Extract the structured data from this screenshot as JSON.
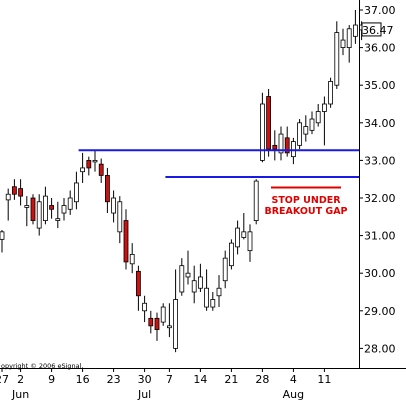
{
  "chart_data": {
    "type": "candlestick",
    "price_axis": {
      "ylim": [
        27.6,
        37.25
      ],
      "ticks": [
        "37.00",
        "36.00",
        "35.00",
        "34.00",
        "33.00",
        "32.00",
        "31.00",
        "30.00",
        "29.00",
        "28.00"
      ],
      "tick_values": [
        37,
        36,
        35,
        34,
        33,
        32,
        31,
        30,
        29,
        28
      ],
      "last_price_label": "36.47",
      "last_price": 36.47
    },
    "date_axis": {
      "day_ticks": [
        "27",
        "2",
        "9",
        "16",
        "23",
        "30",
        "7",
        "14",
        "21",
        "28",
        "4",
        "11"
      ],
      "day_tick_bar_index": [
        0,
        3,
        8,
        13,
        18,
        23,
        27,
        32,
        37,
        42,
        47,
        52
      ],
      "month_labels": [
        "Jun",
        "Jul",
        "Aug"
      ],
      "month_label_bar_index": [
        3,
        23,
        47
      ]
    },
    "candles": [
      {
        "o": 30.9,
        "h": 31.15,
        "l": 30.55,
        "c": 31.1,
        "color": "white"
      },
      {
        "o": 31.95,
        "h": 32.25,
        "l": 31.4,
        "c": 32.1,
        "color": "white"
      },
      {
        "o": 32.3,
        "h": 32.5,
        "l": 31.95,
        "c": 32.1,
        "color": "red"
      },
      {
        "o": 32.25,
        "h": 32.5,
        "l": 31.8,
        "c": 32.05,
        "color": "red"
      },
      {
        "o": 31.8,
        "h": 32.05,
        "l": 31.25,
        "c": 31.75,
        "color": "white"
      },
      {
        "o": 32.0,
        "h": 32.1,
        "l": 31.3,
        "c": 31.4,
        "color": "red"
      },
      {
        "o": 31.9,
        "h": 32.1,
        "l": 31.0,
        "c": 31.2,
        "color": "white"
      },
      {
        "o": 31.4,
        "h": 32.3,
        "l": 31.3,
        "c": 32.05,
        "color": "white"
      },
      {
        "o": 31.8,
        "h": 32.0,
        "l": 31.45,
        "c": 31.7,
        "color": "red"
      },
      {
        "o": 31.4,
        "h": 31.9,
        "l": 31.2,
        "c": 31.45,
        "color": "white"
      },
      {
        "o": 31.6,
        "h": 32.0,
        "l": 31.4,
        "c": 31.8,
        "color": "white"
      },
      {
        "o": 31.7,
        "h": 32.2,
        "l": 31.55,
        "c": 32.0,
        "color": "white"
      },
      {
        "o": 32.4,
        "h": 32.7,
        "l": 31.7,
        "c": 31.9,
        "color": "white"
      },
      {
        "o": 32.8,
        "h": 33.2,
        "l": 32.4,
        "c": 32.7,
        "color": "white"
      },
      {
        "o": 33.0,
        "h": 33.1,
        "l": 32.6,
        "c": 32.8,
        "color": "red"
      },
      {
        "o": 33.0,
        "h": 33.25,
        "l": 32.7,
        "c": 33.0,
        "color": "white"
      },
      {
        "o": 32.9,
        "h": 33.05,
        "l": 32.4,
        "c": 32.6,
        "color": "red"
      },
      {
        "o": 32.6,
        "h": 32.8,
        "l": 31.6,
        "c": 31.9,
        "color": "red"
      },
      {
        "o": 32.0,
        "h": 32.2,
        "l": 31.35,
        "c": 31.6,
        "color": "white"
      },
      {
        "o": 31.9,
        "h": 32.05,
        "l": 30.8,
        "c": 31.1,
        "color": "white"
      },
      {
        "o": 31.4,
        "h": 31.7,
        "l": 30.1,
        "c": 30.3,
        "color": "red"
      },
      {
        "o": 30.5,
        "h": 30.8,
        "l": 30.0,
        "c": 30.25,
        "color": "white"
      },
      {
        "o": 30.05,
        "h": 30.2,
        "l": 29.0,
        "c": 29.4,
        "color": "red"
      },
      {
        "o": 29.2,
        "h": 29.4,
        "l": 28.7,
        "c": 29.0,
        "color": "white"
      },
      {
        "o": 28.8,
        "h": 29.0,
        "l": 28.4,
        "c": 28.6,
        "color": "red"
      },
      {
        "o": 28.5,
        "h": 28.95,
        "l": 28.2,
        "c": 28.8,
        "color": "red"
      },
      {
        "o": 28.7,
        "h": 29.2,
        "l": 28.6,
        "c": 29.1,
        "color": "white"
      },
      {
        "o": 28.6,
        "h": 29.2,
        "l": 28.3,
        "c": 28.55,
        "color": "white"
      },
      {
        "o": 28.0,
        "h": 30.1,
        "l": 27.9,
        "c": 29.3,
        "color": "white"
      },
      {
        "o": 29.5,
        "h": 30.4,
        "l": 29.4,
        "c": 30.2,
        "color": "white"
      },
      {
        "o": 30.0,
        "h": 30.6,
        "l": 29.7,
        "c": 29.9,
        "color": "white"
      },
      {
        "o": 29.5,
        "h": 30.2,
        "l": 29.2,
        "c": 29.8,
        "color": "white"
      },
      {
        "o": 29.9,
        "h": 30.25,
        "l": 29.5,
        "c": 29.6,
        "color": "white"
      },
      {
        "o": 29.6,
        "h": 30.1,
        "l": 29.0,
        "c": 29.1,
        "color": "white"
      },
      {
        "o": 29.1,
        "h": 29.5,
        "l": 29.0,
        "c": 29.3,
        "color": "white"
      },
      {
        "o": 29.4,
        "h": 29.95,
        "l": 29.1,
        "c": 29.6,
        "color": "white"
      },
      {
        "o": 29.8,
        "h": 30.6,
        "l": 29.6,
        "c": 30.4,
        "color": "white"
      },
      {
        "o": 30.2,
        "h": 30.9,
        "l": 30.1,
        "c": 30.8,
        "color": "white"
      },
      {
        "o": 30.7,
        "h": 31.4,
        "l": 30.5,
        "c": 31.2,
        "color": "white"
      },
      {
        "o": 31.1,
        "h": 31.6,
        "l": 30.9,
        "c": 30.95,
        "color": "white"
      },
      {
        "o": 30.6,
        "h": 31.3,
        "l": 30.3,
        "c": 31.1,
        "color": "white"
      },
      {
        "o": 31.4,
        "h": 32.5,
        "l": 31.3,
        "c": 32.45,
        "color": "white"
      },
      {
        "o": 33.0,
        "h": 34.8,
        "l": 32.95,
        "c": 34.5,
        "color": "white"
      },
      {
        "o": 34.7,
        "h": 34.9,
        "l": 33.1,
        "c": 33.3,
        "color": "red"
      },
      {
        "o": 33.3,
        "h": 33.8,
        "l": 33.0,
        "c": 33.4,
        "color": "red"
      },
      {
        "o": 33.2,
        "h": 33.9,
        "l": 33.0,
        "c": 33.7,
        "color": "white"
      },
      {
        "o": 33.6,
        "h": 33.9,
        "l": 33.1,
        "c": 33.2,
        "color": "red"
      },
      {
        "o": 33.1,
        "h": 33.6,
        "l": 32.9,
        "c": 33.5,
        "color": "white"
      },
      {
        "o": 33.4,
        "h": 34.1,
        "l": 33.3,
        "c": 34.0,
        "color": "white"
      },
      {
        "o": 33.9,
        "h": 34.2,
        "l": 33.5,
        "c": 33.7,
        "color": "white"
      },
      {
        "o": 33.8,
        "h": 34.3,
        "l": 33.7,
        "c": 34.1,
        "color": "white"
      },
      {
        "o": 34.0,
        "h": 34.5,
        "l": 33.9,
        "c": 34.3,
        "color": "white"
      },
      {
        "o": 34.3,
        "h": 34.7,
        "l": 33.4,
        "c": 34.5,
        "color": "white"
      },
      {
        "o": 34.5,
        "h": 35.2,
        "l": 34.4,
        "c": 35.1,
        "color": "white"
      },
      {
        "o": 35.0,
        "h": 36.7,
        "l": 34.9,
        "c": 36.4,
        "color": "white"
      },
      {
        "o": 36.2,
        "h": 36.5,
        "l": 35.8,
        "c": 36.0,
        "color": "white"
      },
      {
        "o": 36.0,
        "h": 36.6,
        "l": 35.6,
        "c": 36.5,
        "color": "white"
      },
      {
        "o": 36.3,
        "h": 37.0,
        "l": 36.1,
        "c": 36.6,
        "color": "white"
      },
      {
        "o": 36.6,
        "h": 36.7,
        "l": 36.2,
        "c": 36.47,
        "color": "white"
      }
    ],
    "hlines": [
      {
        "price": 33.27,
        "from_bar": 13,
        "to_bar": 58,
        "color": "#1a1ae6"
      },
      {
        "price": 32.56,
        "from_bar": 27,
        "to_bar": 58,
        "color": "#1a1ae6"
      }
    ],
    "annotation": {
      "lines": [
        "STOP UNDER",
        "BREAKOUT GAP"
      ],
      "color": "#e00000"
    },
    "copyright": "opyright © 2006 eSignal."
  }
}
